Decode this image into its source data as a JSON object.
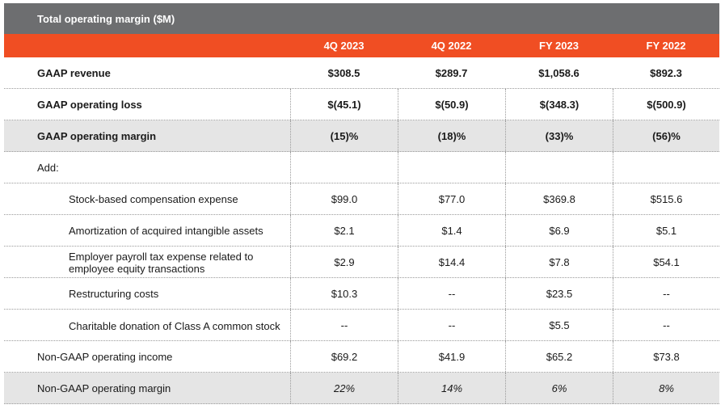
{
  "title": "Total operating margin ($M)",
  "columns": [
    "4Q 2023",
    "4Q 2022",
    "FY 2023",
    "FY 2022"
  ],
  "rows": [
    {
      "label": "GAAP revenue",
      "values": [
        "$308.5",
        "$289.7",
        "$1,058.6",
        "$892.3"
      ]
    },
    {
      "label": "GAAP operating loss",
      "values": [
        "$(45.1)",
        "$(50.9)",
        "$(348.3)",
        "$(500.9)"
      ]
    },
    {
      "label": "GAAP operating margin",
      "values": [
        "(15)%",
        "(18)%",
        "(33)%",
        "(56)%"
      ]
    },
    {
      "label": "Add:",
      "values": [
        "",
        "",
        "",
        ""
      ]
    },
    {
      "label": "Stock-based compensation expense",
      "values": [
        "$99.0",
        "$77.0",
        "$369.8",
        "$515.6"
      ]
    },
    {
      "label": "Amortization of acquired intangible assets",
      "values": [
        "$2.1",
        "$1.4",
        "$6.9",
        "$5.1"
      ]
    },
    {
      "label": "Employer payroll tax expense related to employee equity transactions",
      "values": [
        "$2.9",
        "$14.4",
        "$7.8",
        "$54.1"
      ]
    },
    {
      "label": "Restructuring costs",
      "values": [
        "$10.3",
        "--",
        "$23.5",
        "--"
      ]
    },
    {
      "label": "Charitable donation of Class A common stock",
      "values": [
        "--",
        "--",
        "$5.5",
        "--"
      ]
    },
    {
      "label": "Non-GAAP operating income",
      "values": [
        "$69.2",
        "$41.9",
        "$65.2",
        "$73.8"
      ]
    },
    {
      "label": "Non-GAAP operating margin",
      "values": [
        "22%",
        "14%",
        "6%",
        "8%"
      ]
    }
  ],
  "colors": {
    "header_bar": "#6d6e70",
    "accent": "#f04e23",
    "shade": "#e5e5e5"
  }
}
